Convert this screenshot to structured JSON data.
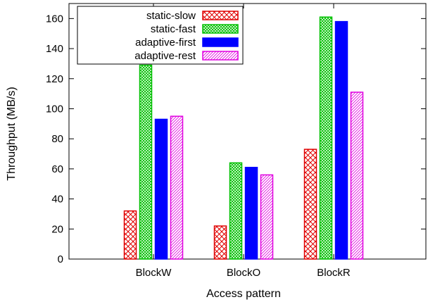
{
  "chart_data": {
    "type": "bar",
    "title": "",
    "xlabel": "Access pattern",
    "ylabel": "Throughput (MB/s)",
    "ylim": [
      0,
      170
    ],
    "yticks": [
      0,
      20,
      40,
      60,
      80,
      100,
      120,
      140,
      160
    ],
    "grid": false,
    "legend_position": "top-left",
    "categories": [
      "BlockW",
      "BlockO",
      "BlockR"
    ],
    "series": [
      {
        "name": "static-slow",
        "values": [
          32,
          22,
          73
        ],
        "color": "#e00000",
        "pattern": "crosshatch"
      },
      {
        "name": "static-fast",
        "values": [
          129,
          64,
          161
        ],
        "color": "#00c000",
        "pattern": "dense-crosshatch"
      },
      {
        "name": "adaptive-first",
        "values": [
          93,
          61,
          158
        ],
        "color": "#0000ff",
        "pattern": "solid"
      },
      {
        "name": "adaptive-rest",
        "values": [
          95,
          56,
          111
        ],
        "color": "#e000e0",
        "pattern": "diagonal"
      }
    ]
  }
}
